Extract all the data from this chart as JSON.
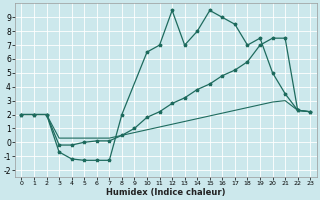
{
  "xlabel": "Humidex (Indice chaleur)",
  "bg_color": "#cce8ec",
  "grid_color": "#ffffff",
  "line_color": "#1e6b5e",
  "xlim": [
    -0.5,
    23.5
  ],
  "ylim": [
    -2.5,
    10.0
  ],
  "xticks": [
    0,
    1,
    2,
    3,
    4,
    5,
    6,
    7,
    8,
    9,
    10,
    11,
    12,
    13,
    14,
    15,
    16,
    17,
    18,
    19,
    20,
    21,
    22,
    23
  ],
  "yticks": [
    -2,
    -1,
    0,
    1,
    2,
    3,
    4,
    5,
    6,
    7,
    8,
    9
  ],
  "series1_x": [
    0,
    1,
    2,
    3,
    4,
    5,
    6,
    7,
    8,
    10,
    11,
    12,
    13,
    14,
    15,
    16,
    17,
    18,
    19,
    20,
    21,
    22,
    23
  ],
  "series1_y": [
    2,
    2,
    2,
    -0.7,
    -1.2,
    -1.3,
    -1.3,
    -1.3,
    2,
    6.5,
    7,
    9.5,
    7,
    8,
    9.5,
    9,
    8.5,
    7,
    7.5,
    5,
    3.5,
    2.3,
    2.2
  ],
  "series2_x": [
    0,
    1,
    2,
    3,
    4,
    5,
    6,
    7,
    8,
    9,
    10,
    11,
    12,
    13,
    14,
    15,
    16,
    17,
    18,
    19,
    20,
    21,
    22,
    23
  ],
  "series2_y": [
    2,
    2,
    2,
    -0.2,
    -0.2,
    0.0,
    0.1,
    0.1,
    0.5,
    1.0,
    1.8,
    2.2,
    2.8,
    3.2,
    3.8,
    4.2,
    4.8,
    5.2,
    5.8,
    7,
    7.5,
    7.5,
    2.3,
    2.2
  ],
  "series3_x": [
    0,
    1,
    2,
    3,
    4,
    5,
    6,
    7,
    8,
    9,
    10,
    11,
    12,
    13,
    14,
    15,
    16,
    17,
    18,
    19,
    20,
    21,
    22,
    23
  ],
  "series3_y": [
    2,
    2,
    2,
    0.3,
    0.3,
    0.3,
    0.3,
    0.3,
    0.5,
    0.7,
    0.9,
    1.1,
    1.3,
    1.5,
    1.7,
    1.9,
    2.1,
    2.3,
    2.5,
    2.7,
    2.9,
    3.0,
    2.3,
    2.2
  ]
}
